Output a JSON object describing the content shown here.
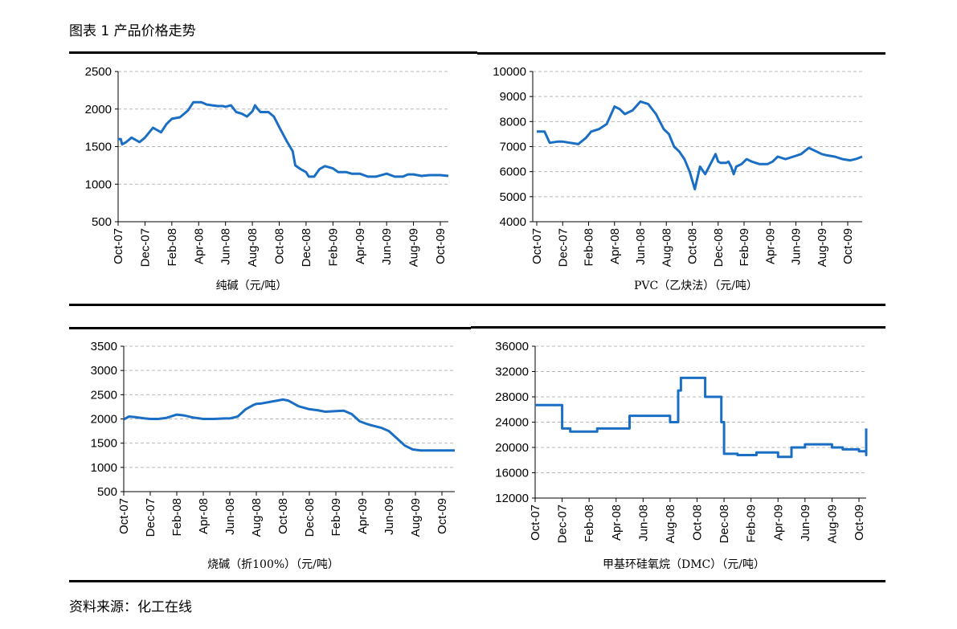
{
  "figure_title": "图表 1 产品价格走势",
  "source": "资料来源：化工在线",
  "colors": {
    "line": "#1a6fc4",
    "grid": "#b8b8b8",
    "axis": "#000000"
  },
  "chart_data": [
    {
      "type": "line",
      "xlabel": "纯碱（元/吨）",
      "x_ticks": [
        "Oct-07",
        "Dec-07",
        "Feb-08",
        "Apr-08",
        "Jun-08",
        "Aug-08",
        "Oct-08",
        "Dec-08",
        "Feb-09",
        "Apr-09",
        "Jun-09",
        "Aug-09",
        "Oct-09"
      ],
      "ylim": [
        500,
        2500
      ],
      "y_ticks": [
        500,
        1000,
        1500,
        2000,
        2500
      ],
      "grid": true,
      "series": [
        {
          "x": [
            0,
            0.1,
            0.15,
            0.3,
            0.5,
            0.8,
            1.0,
            1.3,
            1.6,
            1.8,
            2.0,
            2.3,
            2.6,
            2.8,
            3.0,
            3.1,
            3.3,
            3.5,
            3.7,
            3.9,
            4.0,
            4.2,
            4.4,
            4.6,
            4.8,
            5.0,
            5.1,
            5.2,
            5.3,
            5.5,
            5.6,
            5.8,
            6.0,
            6.3,
            6.5,
            6.6,
            6.8,
            7.0,
            7.1,
            7.3,
            7.5,
            7.7,
            8.0,
            8.2,
            8.5,
            8.7,
            9.0,
            9.3,
            9.6,
            10.0,
            10.3,
            10.6,
            10.8,
            11.0,
            11.3,
            11.6,
            12.0,
            12.3,
            12.5
          ],
          "y": [
            1600,
            1600,
            1530,
            1560,
            1620,
            1560,
            1620,
            1750,
            1690,
            1800,
            1870,
            1890,
            1980,
            2090,
            2090,
            2090,
            2060,
            2050,
            2040,
            2040,
            2030,
            2050,
            1960,
            1940,
            1900,
            1970,
            2050,
            2000,
            1960,
            1960,
            1960,
            1900,
            1760,
            1560,
            1440,
            1250,
            1200,
            1160,
            1100,
            1100,
            1200,
            1240,
            1210,
            1160,
            1160,
            1140,
            1140,
            1100,
            1100,
            1140,
            1100,
            1100,
            1130,
            1130,
            1110,
            1120,
            1120,
            1110,
            1110
          ]
        }
      ]
    },
    {
      "type": "line",
      "xlabel": "PVC（乙炔法）（元/吨）",
      "x_ticks": [
        "Oct-07",
        "Dec-07",
        "Feb-08",
        "Apr-08",
        "Jun-08",
        "Aug-08",
        "Oct-08",
        "Dec-08",
        "Feb-09",
        "Apr-09",
        "Jun-09",
        "Aug-09",
        "Oct-09"
      ],
      "ylim": [
        4000,
        10000
      ],
      "y_ticks": [
        4000,
        5000,
        6000,
        7000,
        8000,
        9000,
        10000
      ],
      "grid": true,
      "series": [
        {
          "x": [
            0,
            0.3,
            0.5,
            0.8,
            1.0,
            1.3,
            1.6,
            1.9,
            2.1,
            2.4,
            2.7,
            3.0,
            3.2,
            3.4,
            3.7,
            4.0,
            4.3,
            4.6,
            4.9,
            5.1,
            5.3,
            5.5,
            5.7,
            5.9,
            6.1,
            6.3,
            6.5,
            6.7,
            6.9,
            7.0,
            7.1,
            7.2,
            7.3,
            7.4,
            7.5,
            7.6,
            7.7,
            7.9,
            8.1,
            8.3,
            8.6,
            8.9,
            9.1,
            9.3,
            9.6,
            9.9,
            10.2,
            10.5,
            10.8,
            11.0,
            11.2,
            11.5,
            11.8,
            12.1,
            12.3,
            12.6
          ],
          "y": [
            7600,
            7600,
            7150,
            7200,
            7200,
            7150,
            7100,
            7350,
            7600,
            7700,
            7900,
            8600,
            8500,
            8300,
            8450,
            8800,
            8700,
            8300,
            7700,
            7500,
            7000,
            6800,
            6500,
            6000,
            5300,
            6200,
            5900,
            6300,
            6700,
            6400,
            6350,
            6350,
            6350,
            6400,
            6200,
            5900,
            6200,
            6300,
            6500,
            6400,
            6300,
            6300,
            6400,
            6600,
            6500,
            6600,
            6700,
            6950,
            6800,
            6700,
            6650,
            6600,
            6500,
            6450,
            6500,
            6600
          ]
        }
      ]
    },
    {
      "type": "line",
      "xlabel": "烧碱（折100%）（元/吨）",
      "x_ticks": [
        "Oct-07",
        "Dec-07",
        "Feb-08",
        "Apr-08",
        "Jun-08",
        "Aug-08",
        "Oct-08",
        "Dec-08",
        "Feb-09",
        "Apr-09",
        "Jun-09",
        "Aug-09",
        "Oct-09"
      ],
      "ylim": [
        500,
        3500
      ],
      "y_ticks": [
        500,
        1000,
        1500,
        2000,
        2500,
        3000,
        3500
      ],
      "grid": true,
      "series": [
        {
          "x": [
            0,
            0.2,
            0.4,
            0.8,
            1.0,
            1.3,
            1.6,
            2.0,
            2.3,
            2.6,
            3.0,
            3.4,
            3.8,
            4.0,
            4.3,
            4.6,
            4.9,
            5.0,
            5.2,
            5.5,
            5.8,
            6.0,
            6.2,
            6.4,
            6.6,
            7.0,
            7.3,
            7.6,
            8.0,
            8.3,
            8.6,
            8.9,
            9.2,
            9.4,
            9.7,
            10.0,
            10.3,
            10.6,
            10.9,
            11.2,
            11.5,
            11.8,
            12.1,
            12.4,
            12.7
          ],
          "y": [
            1990,
            2050,
            2040,
            2010,
            2000,
            2000,
            2020,
            2090,
            2070,
            2030,
            2000,
            2000,
            2010,
            2010,
            2050,
            2200,
            2290,
            2310,
            2320,
            2350,
            2380,
            2400,
            2380,
            2320,
            2260,
            2200,
            2180,
            2150,
            2160,
            2170,
            2100,
            1950,
            1890,
            1860,
            1820,
            1750,
            1600,
            1450,
            1370,
            1350,
            1350,
            1350,
            1350,
            1350,
            1350
          ]
        }
      ]
    },
    {
      "type": "line",
      "xlabel": "甲基环硅氧烷（DMC）（元/吨）",
      "x_ticks": [
        "Oct-07",
        "Dec-07",
        "Feb-08",
        "Apr-08",
        "Jun-08",
        "Aug-08",
        "Oct-08",
        "Dec-08",
        "Feb-09",
        "Apr-09",
        "Jun-09",
        "Aug-09",
        "Oct-09"
      ],
      "ylim": [
        12000,
        36000
      ],
      "y_ticks": [
        12000,
        16000,
        20000,
        24000,
        28000,
        32000,
        36000
      ],
      "grid": true,
      "series": [
        {
          "x": [
            0,
            1.0,
            1.0,
            1.3,
            1.3,
            2.3,
            2.3,
            3.5,
            3.5,
            4.0,
            4.0,
            5.0,
            5.0,
            5.3,
            5.3,
            5.4,
            5.4,
            5.6,
            5.6,
            6.3,
            6.3,
            6.9,
            6.9,
            7.0,
            7.0,
            7.5,
            7.5,
            8.2,
            8.2,
            9.0,
            9.0,
            9.5,
            9.5,
            10.0,
            10.0,
            11.0,
            11.0,
            11.4,
            11.4,
            12.0,
            12.0,
            12.3,
            12.3,
            12.6,
            12.6,
            12.8,
            12.8,
            13.1,
            13.1,
            13.3
          ],
          "y": [
            26700,
            26700,
            23000,
            23000,
            22500,
            22500,
            23000,
            23000,
            25000,
            25000,
            25000,
            25000,
            24000,
            24000,
            29000,
            29000,
            31000,
            31000,
            31000,
            31000,
            28000,
            28000,
            24000,
            24000,
            19000,
            19000,
            18800,
            18800,
            19200,
            19200,
            18500,
            18500,
            20000,
            20000,
            20500,
            20500,
            20000,
            20000,
            19700,
            19700,
            19400,
            19400,
            19000,
            19000,
            18800,
            18800,
            21800,
            21800,
            23000,
            23000
          ]
        }
      ]
    }
  ]
}
